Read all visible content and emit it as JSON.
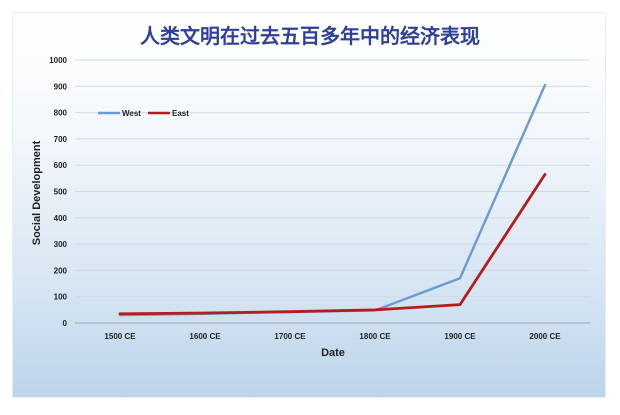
{
  "chart_data": {
    "type": "line",
    "title": "人类文明在过去五百多年中的经济表现",
    "xlabel": "Date",
    "ylabel": "Social Development",
    "categories": [
      "1500 CE",
      "1600 CE",
      "1700 CE",
      "1800 CE",
      "1900 CE",
      "2000 CE"
    ],
    "ylim": [
      0,
      1000
    ],
    "yticks": [
      0,
      100,
      200,
      300,
      400,
      500,
      600,
      700,
      800,
      900,
      1000
    ],
    "grid": true,
    "legend_position": "top-left",
    "series": [
      {
        "name": "West",
        "color": "#6b9bd2",
        "values": [
          30,
          35,
          42,
          48,
          170,
          905
        ]
      },
      {
        "name": "East",
        "color": "#b51c1c",
        "values": [
          35,
          38,
          43,
          50,
          70,
          565
        ]
      }
    ]
  }
}
